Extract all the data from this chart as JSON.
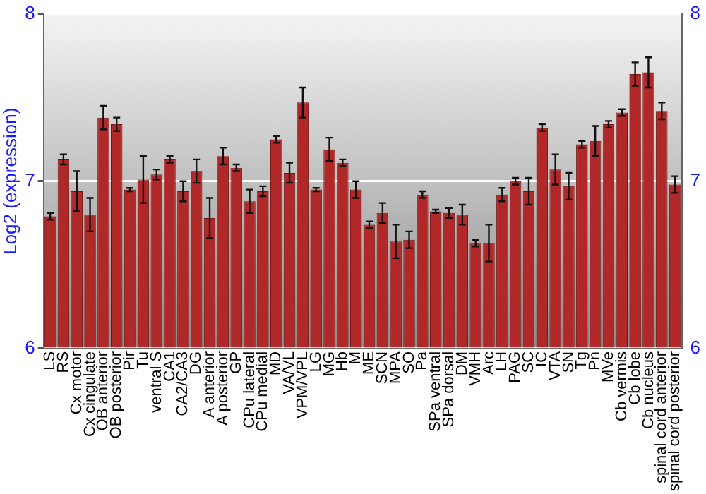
{
  "chart_data": {
    "type": "bar",
    "ylabel": "Log2 (expression)",
    "categories": [
      "LS",
      "RS",
      "Cx motor",
      "Cx cingulate",
      "OB anterior",
      "OB posterior",
      "Pir",
      "Tu",
      "ventral S",
      "CA1",
      "CA2/CA3",
      "DG",
      "A anterior",
      "A posterior",
      "GP",
      "CPu lateral",
      "CPu medial",
      "MD",
      "VA/VL",
      "VPM/VPL",
      "LG",
      "MG",
      "Hb",
      "M",
      "ME",
      "SCN",
      "MPA",
      "SO",
      "Pa",
      "SPa ventral",
      "SPa dorsal",
      "DM",
      "VMH",
      "Arc",
      "LH",
      "PAG",
      "SC",
      "IC",
      "VTA",
      "SN",
      "Tg",
      "Pn",
      "MVe",
      "Cb vermis",
      "Cb lobe",
      "Cb nucleus",
      "spinal cord anterior",
      "spinal cord posterior"
    ],
    "values": [
      6.79,
      7.13,
      6.94,
      6.8,
      7.38,
      7.34,
      6.95,
      7.01,
      7.04,
      7.13,
      6.94,
      7.06,
      6.78,
      7.15,
      7.08,
      6.88,
      6.94,
      7.25,
      7.05,
      7.47,
      6.95,
      7.19,
      7.11,
      6.95,
      6.74,
      6.81,
      6.64,
      6.65,
      6.92,
      6.82,
      6.81,
      6.8,
      6.63,
      6.63,
      6.92,
      7.0,
      6.94,
      7.32,
      7.07,
      6.97,
      7.22,
      7.24,
      7.34,
      7.41,
      7.64,
      7.65,
      7.42,
      6.98
    ],
    "errors": [
      0.02,
      0.03,
      0.12,
      0.1,
      0.07,
      0.04,
      0.01,
      0.14,
      0.03,
      0.02,
      0.06,
      0.07,
      0.12,
      0.05,
      0.02,
      0.07,
      0.03,
      0.02,
      0.06,
      0.09,
      0.01,
      0.07,
      0.02,
      0.05,
      0.02,
      0.06,
      0.1,
      0.05,
      0.02,
      0.01,
      0.03,
      0.06,
      0.02,
      0.11,
      0.04,
      0.02,
      0.08,
      0.02,
      0.09,
      0.08,
      0.02,
      0.09,
      0.02,
      0.02,
      0.07,
      0.09,
      0.05,
      0.05
    ],
    "color": "#b02828",
    "ylim": [
      6,
      8
    ],
    "yticks": [
      6,
      7,
      8
    ],
    "y2lim": [
      6,
      8
    ],
    "y2ticks": [
      6,
      7,
      8
    ],
    "grid": "y",
    "legend": false
  }
}
